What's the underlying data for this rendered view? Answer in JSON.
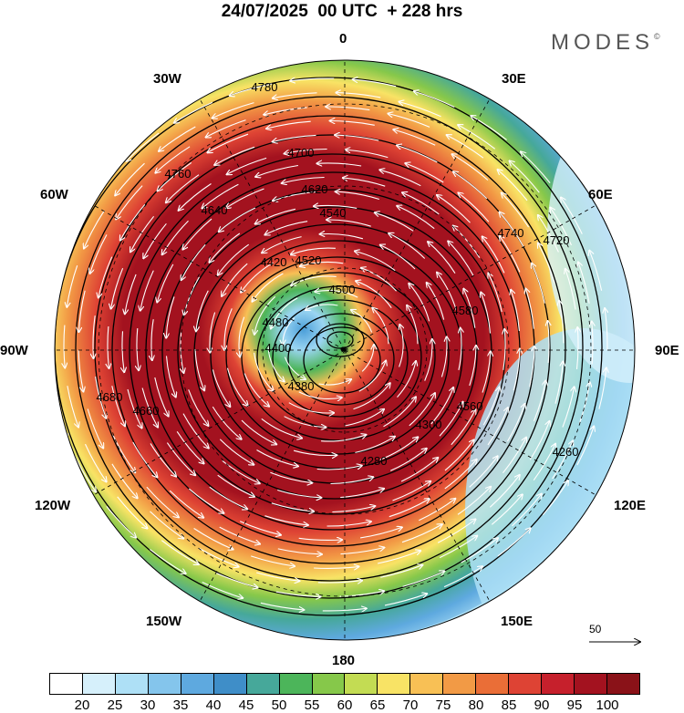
{
  "title": "24/07/2025  00 UTC  + 228 hrs",
  "brand": "MODES",
  "brand_mark": "©",
  "lon_labels": [
    {
      "id": "0",
      "text": "0"
    },
    {
      "id": "30e",
      "text": "30E"
    },
    {
      "id": "60e",
      "text": "60E"
    },
    {
      "id": "90e",
      "text": "90E"
    },
    {
      "id": "120e",
      "text": "120E"
    },
    {
      "id": "150e",
      "text": "150E"
    },
    {
      "id": "180",
      "text": "180"
    },
    {
      "id": "150w",
      "text": "150W"
    },
    {
      "id": "120w",
      "text": "120W"
    },
    {
      "id": "90w",
      "text": "90W"
    },
    {
      "id": "60w",
      "text": "60W"
    },
    {
      "id": "30w",
      "text": "30W"
    }
  ],
  "contour_labels": [
    "4780",
    "4760",
    "4740",
    "4720",
    "4700",
    "4680",
    "4660",
    "4640",
    "4620",
    "4580",
    "4560",
    "4540",
    "4520",
    "4500",
    "4480",
    "4420",
    "4400",
    "4380",
    "4300",
    "4280",
    "4260"
  ],
  "reference_vector": {
    "label": "50",
    "value": 50
  },
  "colorbar": {
    "colors": [
      "#ffffff",
      "#d6f0fb",
      "#aee0f6",
      "#84c5ec",
      "#5ea9df",
      "#3f8ec8",
      "#46a89a",
      "#4cb55a",
      "#86c84a",
      "#c3dc53",
      "#f8e365",
      "#f8c055",
      "#f29a45",
      "#ea6e37",
      "#de4334",
      "#c6202c",
      "#a3121f",
      "#8a1218"
    ],
    "labels": [
      "20",
      "25",
      "30",
      "35",
      "40",
      "45",
      "50",
      "55",
      "60",
      "65",
      "70",
      "75",
      "80",
      "85",
      "90",
      "95",
      "100"
    ]
  }
}
